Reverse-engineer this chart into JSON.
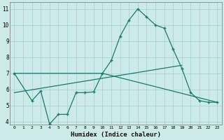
{
  "xlabel": "Humidex (Indice chaleur)",
  "bg_color": "#cceae8",
  "grid_color": "#aad4d2",
  "line_color": "#1a7a6e",
  "xlim": [
    -0.5,
    23.5
  ],
  "ylim": [
    3.8,
    11.4
  ],
  "yticks": [
    4,
    5,
    6,
    7,
    8,
    9,
    10,
    11
  ],
  "xticks": [
    0,
    1,
    2,
    3,
    4,
    5,
    6,
    7,
    8,
    9,
    10,
    11,
    12,
    13,
    14,
    15,
    16,
    17,
    18,
    19,
    20,
    21,
    22,
    23
  ],
  "line1_x": [
    0,
    2,
    3,
    4,
    5,
    6,
    7,
    8,
    9,
    10,
    11,
    12,
    13,
    14,
    15,
    16,
    17,
    18,
    19,
    20,
    21,
    22,
    23
  ],
  "line1_y": [
    7.0,
    5.3,
    5.9,
    3.85,
    4.45,
    4.45,
    5.8,
    5.8,
    5.85,
    7.0,
    7.8,
    9.3,
    10.3,
    11.0,
    10.5,
    10.0,
    9.8,
    8.5,
    7.3,
    5.8,
    5.3,
    5.2,
    5.2
  ],
  "line2_x": [
    0,
    10,
    23
  ],
  "line2_y": [
    7.0,
    7.0,
    5.2
  ],
  "line3_x": [
    0,
    19
  ],
  "line3_y": [
    5.8,
    7.5
  ]
}
